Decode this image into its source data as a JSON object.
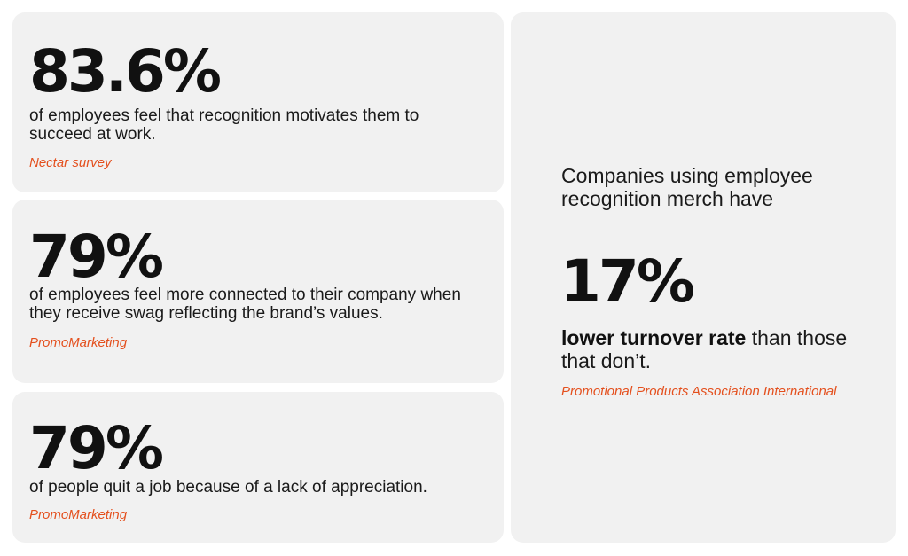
{
  "stats": [
    {
      "value": "83.6%",
      "description": "of employees feel that recognition motivates them to succeed at work.",
      "source": "Nectar survey"
    },
    {
      "value": "79%",
      "description": "of employees feel more connected to their company when they receive swag reflecting the brand’s values.",
      "source": "PromoMarketing"
    },
    {
      "value": "79%",
      "description": "of people quit a job because of a lack of appreciation.",
      "source": "PromoMarketing"
    }
  ],
  "feature": {
    "intro": "Companies using employee recognition merch have",
    "value": "17%",
    "highlight": "lower turnover rate",
    "rest": " than those that don’t.",
    "source": "Promotional Products Association International"
  },
  "colors": {
    "card_background": "#f1f1f1",
    "source_accent": "#e4501e",
    "text": "#111111"
  }
}
